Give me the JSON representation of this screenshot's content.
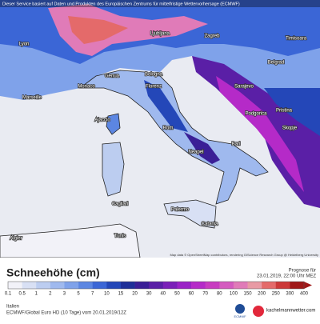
{
  "header": {
    "notice": "Dieser Service basiert auf Daten und Produkten des Europäischen Zentrums für mittelfristige Wettervorhersage (ECMWF)"
  },
  "cities": [
    {
      "label": "Lyon"
    },
    {
      "label": "Ljubljana"
    },
    {
      "label": "Zagreb"
    },
    {
      "label": "Timisoara"
    },
    {
      "label": "Belgrad"
    },
    {
      "label": "Genua"
    },
    {
      "label": "Bologna"
    },
    {
      "label": "Florenz"
    },
    {
      "label": "Monaco"
    },
    {
      "label": "Marseille"
    },
    {
      "label": "Sarajevo"
    },
    {
      "label": "Rom"
    },
    {
      "label": "Podgorica"
    },
    {
      "label": "Pristina"
    },
    {
      "label": "Skopje"
    },
    {
      "label": "Ajaccio"
    },
    {
      "label": "Neapel"
    },
    {
      "label": "Bari"
    },
    {
      "label": "Palermo"
    },
    {
      "label": "Catania"
    },
    {
      "label": "Cagliari"
    },
    {
      "label": "Algier"
    },
    {
      "label": "Tunis"
    }
  ],
  "attribution": "Map data © OpenStreetMap contributors, rendering GIScience Research Group @ Heidelberg University",
  "legend": {
    "title": "Schneehöhe (cm)",
    "forecast_label": "Prognose für",
    "forecast_time": "23.01.2019, 22:00 Uhr MEZ",
    "ticks": [
      "0.1",
      "0.5",
      "1",
      "2",
      "3",
      "5",
      "7",
      "10",
      "15",
      "20",
      "30",
      "40",
      "50",
      "60",
      "70",
      "80",
      "100",
      "150",
      "200",
      "250",
      "300",
      "400"
    ],
    "colors": [
      "#f2f2f8",
      "#d8e0f4",
      "#bccdf0",
      "#9fb9ee",
      "#7fa2ea",
      "#5c86e2",
      "#3b66d6",
      "#2447b8",
      "#1e2f98",
      "#3a1f96",
      "#5a1fa6",
      "#7a1fb8",
      "#9a22c6",
      "#b52ac8",
      "#c83cc0",
      "#d45bbf",
      "#e07bb8",
      "#e89aa4",
      "#e46a6a",
      "#cc3838",
      "#a01818"
    ]
  },
  "footer": {
    "region": "Italien",
    "model": "ECMWF/Global Euro HD (10 Tage) vom 20.01.2019/12Z",
    "logo1": "ECMWF",
    "logo2": "kachelmannwetter.com"
  }
}
